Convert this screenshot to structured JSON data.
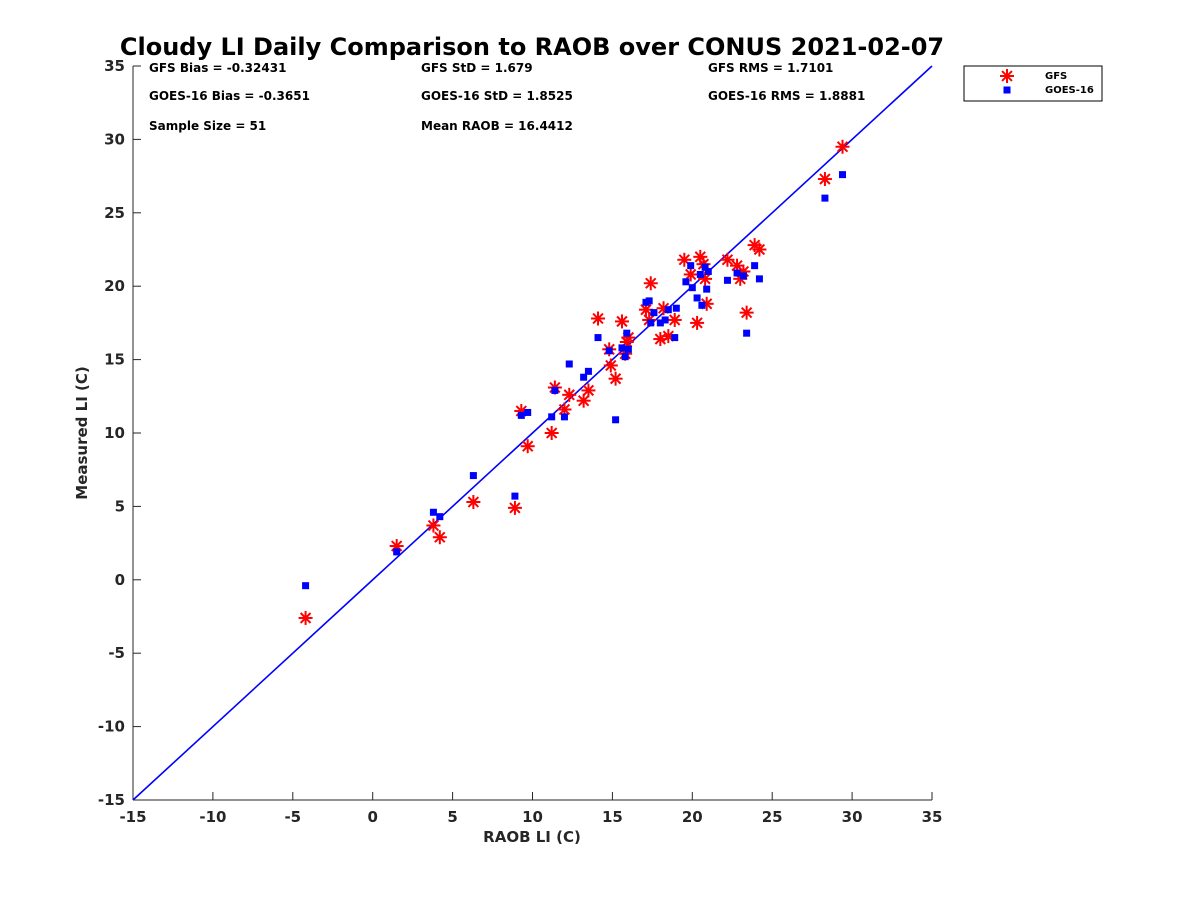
{
  "chart_data": {
    "type": "scatter",
    "title": "Cloudy LI Daily Comparison to RAOB over CONUS 2021-02-07",
    "xlabel": "RAOB LI (C)",
    "ylabel": "Measured LI (C)",
    "xlim": [
      -15,
      35
    ],
    "ylim": [
      -15,
      35
    ],
    "xticks": [
      "-15",
      "-10",
      "-5",
      "0",
      "5",
      "10",
      "15",
      "20",
      "25",
      "30",
      "35"
    ],
    "yticks": [
      "-15",
      "-10",
      "-5",
      "0",
      "5",
      "10",
      "15",
      "20",
      "25",
      "30",
      "35"
    ],
    "grid": false,
    "legend_position": "outside-top-right",
    "reference_line": {
      "x": [
        -15,
        35
      ],
      "y": [
        -15,
        35
      ],
      "color": "#0000ff"
    },
    "stats": [
      "GFS Bias = -0.32431",
      "GFS StD = 1.679",
      "GFS RMS = 1.7101",
      "GOES-16 Bias = -0.3651",
      "GOES-16 StD = 1.8525",
      "GOES-16 RMS = 1.8881",
      "Sample Size = 51",
      "Mean RAOB = 16.4412"
    ],
    "series": [
      {
        "name": "GFS",
        "marker": "asterisk",
        "color": "#ff0000",
        "points": [
          [
            -4.2,
            -2.6
          ],
          [
            1.5,
            2.3
          ],
          [
            3.8,
            3.7
          ],
          [
            4.2,
            2.9
          ],
          [
            6.3,
            5.3
          ],
          [
            8.9,
            4.9
          ],
          [
            9.3,
            11.5
          ],
          [
            9.7,
            9.1
          ],
          [
            11.2,
            10.0
          ],
          [
            11.4,
            13.1
          ],
          [
            12.0,
            11.6
          ],
          [
            12.3,
            12.6
          ],
          [
            13.2,
            12.2
          ],
          [
            13.5,
            12.9
          ],
          [
            14.1,
            17.8
          ],
          [
            14.8,
            15.7
          ],
          [
            14.9,
            14.6
          ],
          [
            15.2,
            13.7
          ],
          [
            15.6,
            17.6
          ],
          [
            15.9,
            16.2
          ],
          [
            15.8,
            15.4
          ],
          [
            16.0,
            16.5
          ],
          [
            17.1,
            18.4
          ],
          [
            17.3,
            17.7
          ],
          [
            17.4,
            20.2
          ],
          [
            18.0,
            16.4
          ],
          [
            18.2,
            18.5
          ],
          [
            18.5,
            16.6
          ],
          [
            18.9,
            17.7
          ],
          [
            19.5,
            21.8
          ],
          [
            19.9,
            20.8
          ],
          [
            20.3,
            17.5
          ],
          [
            20.5,
            22.0
          ],
          [
            20.7,
            21.5
          ],
          [
            20.8,
            20.5
          ],
          [
            20.9,
            18.8
          ],
          [
            22.2,
            21.8
          ],
          [
            22.8,
            21.4
          ],
          [
            23.0,
            20.5
          ],
          [
            23.2,
            21.0
          ],
          [
            23.4,
            18.2
          ],
          [
            23.9,
            22.8
          ],
          [
            24.2,
            22.5
          ],
          [
            28.3,
            27.3
          ],
          [
            29.4,
            29.5
          ]
        ]
      },
      {
        "name": "GOES-16",
        "marker": "square",
        "color": "#0000ff",
        "points": [
          [
            -4.2,
            -0.4
          ],
          [
            1.5,
            1.9
          ],
          [
            3.8,
            4.6
          ],
          [
            4.2,
            4.3
          ],
          [
            6.3,
            7.1
          ],
          [
            8.9,
            5.7
          ],
          [
            9.3,
            11.2
          ],
          [
            9.7,
            11.4
          ],
          [
            11.2,
            11.1
          ],
          [
            11.4,
            12.9
          ],
          [
            12.0,
            11.1
          ],
          [
            12.3,
            14.7
          ],
          [
            13.2,
            13.8
          ],
          [
            13.5,
            14.2
          ],
          [
            14.1,
            16.5
          ],
          [
            14.8,
            15.6
          ],
          [
            15.2,
            10.9
          ],
          [
            15.6,
            15.8
          ],
          [
            15.9,
            16.8
          ],
          [
            15.8,
            15.2
          ],
          [
            16.0,
            15.7
          ],
          [
            17.1,
            18.9
          ],
          [
            17.3,
            19.0
          ],
          [
            17.4,
            17.5
          ],
          [
            17.6,
            18.2
          ],
          [
            18.0,
            17.5
          ],
          [
            18.3,
            17.7
          ],
          [
            18.5,
            18.4
          ],
          [
            18.9,
            16.5
          ],
          [
            19.0,
            18.5
          ],
          [
            19.6,
            20.3
          ],
          [
            19.9,
            21.4
          ],
          [
            20.0,
            19.9
          ],
          [
            20.3,
            19.2
          ],
          [
            20.5,
            20.8
          ],
          [
            20.6,
            18.7
          ],
          [
            20.8,
            21.3
          ],
          [
            20.9,
            19.8
          ],
          [
            21.0,
            21.0
          ],
          [
            22.2,
            20.4
          ],
          [
            22.8,
            20.9
          ],
          [
            23.2,
            20.7
          ],
          [
            23.4,
            16.8
          ],
          [
            23.9,
            21.4
          ],
          [
            24.2,
            20.5
          ],
          [
            28.3,
            26.0
          ],
          [
            29.4,
            27.6
          ]
        ]
      }
    ]
  }
}
